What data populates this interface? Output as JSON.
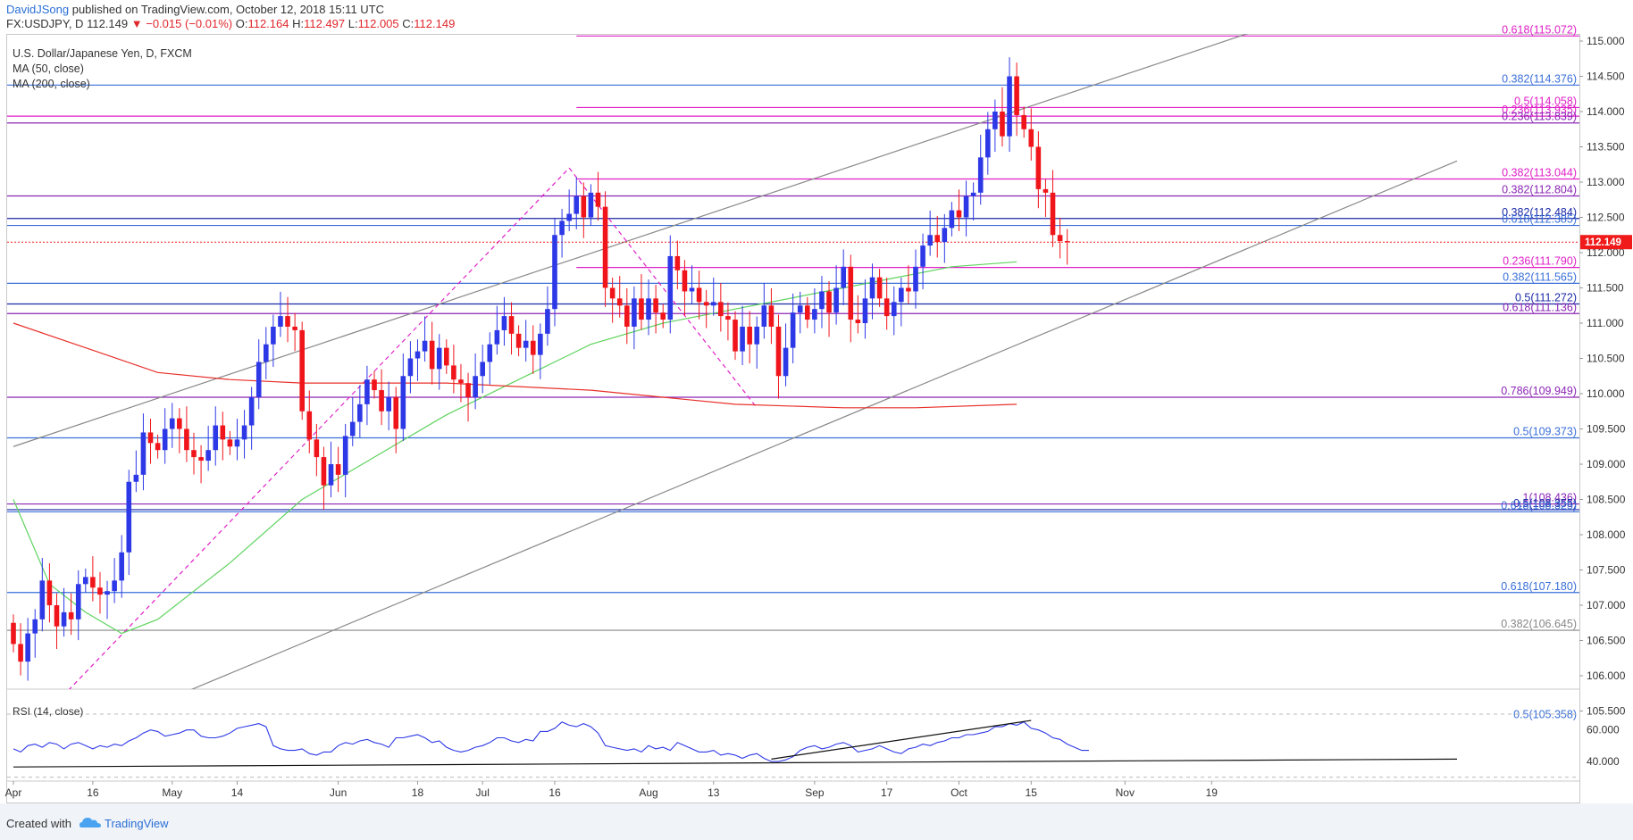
{
  "header": {
    "author": "DavidJSong",
    "published_text": " published on TradingView.com, October 12, 2018 15:11 UTC",
    "symbol": "FX:USDJPY, D",
    "last": "112.149",
    "change": "−0.015 (−0.01%)",
    "ohlc": {
      "o_label": "O:",
      "o": "112.164",
      "h_label": "H:",
      "h": "112.497",
      "l_label": "L:",
      "l": "112.005",
      "c_label": "C:",
      "c": "112.149"
    }
  },
  "legend": {
    "title": "U.S. Dollar/Japanese Yen, D, FXCM",
    "ma50": "MA (50, close)",
    "ma200": "MA (200, close)"
  },
  "rsi_label": "RSI (14, close)",
  "footer": {
    "created_with": "Created with",
    "brand": "TradingView"
  },
  "colors": {
    "up": "#2d38e6",
    "down": "#f0151b",
    "ma50": "#5fd35f",
    "ma200": "#e8302a",
    "fib_magenta": "#e020c8",
    "fib_purple": "#8b25b5",
    "fib_blue": "#3a6fd8",
    "fib_navy": "#1b2aa6",
    "trend": "#888888",
    "price_tag": "#f01a1a",
    "rsi": "#2d38e6"
  },
  "chart_data": {
    "type": "candlestick",
    "title": "U.S. Dollar/Japanese Yen, D, FXCM",
    "y_axis": {
      "range": [
        105.0,
        115.3
      ],
      "ticks": [
        "115.000",
        "114.500",
        "114.000",
        "113.500",
        "113.000",
        "112.500",
        "112.000",
        "111.500",
        "111.000",
        "110.500",
        "110.000",
        "109.500",
        "109.000",
        "108.500",
        "108.000",
        "107.500",
        "107.000",
        "106.500",
        "106.000",
        "105.500"
      ]
    },
    "x_axis": {
      "ticks": [
        {
          "label": "Apr",
          "bar": 0
        },
        {
          "label": "16",
          "bar": 11
        },
        {
          "label": "May",
          "bar": 22
        },
        {
          "label": "14",
          "bar": 31
        },
        {
          "label": "Jun",
          "bar": 45
        },
        {
          "label": "18",
          "bar": 56
        },
        {
          "label": "Jul",
          "bar": 65
        },
        {
          "label": "16",
          "bar": 75
        },
        {
          "label": "Aug",
          "bar": 88
        },
        {
          "label": "13",
          "bar": 97
        },
        {
          "label": "Sep",
          "bar": 111
        },
        {
          "label": "17",
          "bar": 121
        },
        {
          "label": "Oct",
          "bar": 131
        },
        {
          "label": "15",
          "bar": 141
        },
        {
          "label": "Nov",
          "bar": 154
        },
        {
          "label": "19",
          "bar": 166
        }
      ]
    },
    "last_price": "112.149",
    "closes": [
      106.45,
      106.2,
      106.6,
      106.8,
      107.35,
      107.0,
      106.7,
      106.9,
      106.8,
      107.3,
      107.4,
      107.25,
      107.15,
      107.2,
      107.35,
      107.75,
      108.75,
      108.85,
      109.45,
      109.3,
      109.2,
      109.5,
      109.65,
      109.5,
      109.2,
      109.1,
      109.05,
      109.2,
      109.55,
      109.35,
      109.25,
      109.35,
      109.55,
      109.95,
      110.45,
      110.7,
      110.95,
      111.1,
      110.95,
      110.9,
      109.75,
      109.35,
      109.1,
      108.7,
      109.0,
      108.85,
      109.4,
      109.6,
      109.85,
      110.2,
      110.05,
      109.75,
      109.95,
      109.5,
      110.25,
      110.5,
      110.6,
      110.75,
      110.35,
      110.65,
      110.4,
      110.2,
      110.15,
      109.95,
      110.25,
      110.45,
      110.7,
      110.9,
      111.1,
      110.85,
      110.65,
      110.75,
      110.55,
      110.85,
      111.2,
      112.25,
      112.45,
      112.55,
      112.8,
      112.5,
      112.85,
      112.65,
      111.5,
      111.35,
      111.25,
      110.95,
      111.35,
      111.05,
      111.35,
      111.15,
      111.05,
      111.95,
      111.75,
      111.45,
      111.5,
      111.3,
      111.25,
      111.3,
      111.1,
      111.05,
      110.6,
      110.95,
      110.7,
      110.95,
      111.25,
      110.95,
      110.25,
      110.65,
      111.15,
      111.25,
      111.05,
      111.2,
      111.45,
      111.15,
      111.5,
      111.8,
      111.05,
      111.0,
      111.35,
      111.65,
      111.35,
      111.1,
      111.3,
      111.5,
      111.45,
      111.8,
      112.1,
      112.25,
      112.15,
      112.35,
      112.6,
      112.5,
      112.8,
      112.85,
      113.35,
      113.75,
      114.0,
      113.65,
      114.5,
      113.95,
      113.75,
      113.5,
      112.9,
      112.85,
      112.25,
      112.164,
      112.149
    ],
    "ma50": {
      "points": [
        [
          0,
          108.5
        ],
        [
          5,
          107.3
        ],
        [
          10,
          106.9
        ],
        [
          15,
          106.6
        ],
        [
          20,
          106.8
        ],
        [
          30,
          107.6
        ],
        [
          40,
          108.5
        ],
        [
          50,
          109.1
        ],
        [
          60,
          109.7
        ],
        [
          70,
          110.2
        ],
        [
          80,
          110.7
        ],
        [
          90,
          111.0
        ],
        [
          100,
          111.2
        ],
        [
          110,
          111.4
        ],
        [
          120,
          111.6
        ],
        [
          130,
          111.8
        ],
        [
          139,
          111.87
        ]
      ]
    },
    "ma200": {
      "points": [
        [
          0,
          111.0
        ],
        [
          10,
          110.65
        ],
        [
          20,
          110.3
        ],
        [
          30,
          110.2
        ],
        [
          40,
          110.15
        ],
        [
          60,
          110.15
        ],
        [
          80,
          110.05
        ],
        [
          100,
          109.85
        ],
        [
          115,
          109.8
        ],
        [
          125,
          109.8
        ],
        [
          139,
          109.85
        ]
      ]
    },
    "channel_lines": [
      {
        "from": [
          0,
          109.25
        ],
        "to": [
          200,
          116.1
        ]
      },
      {
        "from": [
          0,
          104.75
        ],
        "to": [
          200,
          113.3
        ]
      }
    ],
    "fibonacci_levels": [
      {
        "label": "0.618(115.072)",
        "value": 115.072,
        "color": "fib_magenta",
        "x_from": 78
      },
      {
        "label": "0.382(114.376)",
        "value": 114.376,
        "color": "fib_blue",
        "x_from": 0
      },
      {
        "label": "0.5(114.058)",
        "value": 114.058,
        "color": "fib_magenta",
        "x_from": 78
      },
      {
        "label": "0.236(113.935)",
        "value": 113.935,
        "color": "fib_magenta",
        "x_from": 0
      },
      {
        "label": "0.236(113.839)",
        "value": 113.839,
        "color": "fib_purple",
        "x_from": 0
      },
      {
        "label": "0.382(113.044)",
        "value": 113.044,
        "color": "fib_magenta",
        "x_from": 78
      },
      {
        "label": "0.382(112.804)",
        "value": 112.804,
        "color": "fib_purple",
        "x_from": 0
      },
      {
        "label": "0.382(112.484)",
        "value": 112.484,
        "color": "fib_navy",
        "x_from": 0
      },
      {
        "label": "0.618(112.385)",
        "value": 112.385,
        "color": "fib_blue",
        "x_from": 0
      },
      {
        "label": "0.236(111.790)",
        "value": 111.79,
        "color": "fib_magenta",
        "x_from": 78
      },
      {
        "label": "0.382(111.565)",
        "value": 111.565,
        "color": "fib_blue",
        "x_from": 0
      },
      {
        "label": "0.5(111.272)",
        "value": 111.272,
        "color": "fib_navy",
        "x_from": 0
      },
      {
        "label": "0.618(111.136)",
        "value": 111.136,
        "color": "fib_purple",
        "x_from": 0
      },
      {
        "label": "0.786(109.949)",
        "value": 109.949,
        "color": "fib_purple",
        "x_from": 0
      },
      {
        "label": "0.5(109.373)",
        "value": 109.373,
        "color": "fib_blue",
        "x_from": 0
      },
      {
        "label": "1(108.436)",
        "value": 108.436,
        "color": "fib_purple",
        "x_from": 0
      },
      {
        "label": "0.5(108.355)",
        "value": 108.355,
        "color": "fib_navy",
        "x_from": 0
      },
      {
        "label": "0.618(108.325)",
        "value": 108.325,
        "color": "fib_blue",
        "x_from": 0
      },
      {
        "label": "0.618(107.180)",
        "value": 107.18,
        "color": "fib_blue",
        "x_from": 0
      },
      {
        "label": "0.382(106.645)",
        "value": 106.645,
        "color": "trend",
        "x_from": 0
      },
      {
        "label": "0.5(105.358)",
        "value": 105.358,
        "color": "fib_blue",
        "x_from": 0
      }
    ],
    "dashed_swing_lines": [
      {
        "from": [
          3,
          105.3
        ],
        "to": [
          77,
          113.2
        ]
      },
      {
        "from": [
          77,
          113.2
        ],
        "to": [
          103,
          109.8
        ]
      }
    ],
    "rsi": {
      "range": [
        35,
        72
      ],
      "ticks": [
        "60.000",
        "40.000"
      ],
      "levels": [
        70,
        30
      ],
      "values": [
        48,
        46,
        50,
        51,
        49,
        52,
        51,
        48,
        51,
        52,
        50,
        48,
        50,
        49,
        51,
        50,
        53,
        55,
        58,
        60,
        59,
        56,
        57,
        58,
        60,
        60,
        56,
        55,
        55,
        56,
        58,
        61,
        62,
        63,
        64,
        62,
        50,
        48,
        47,
        47,
        48,
        45,
        44,
        46,
        46,
        50,
        52,
        51,
        53,
        54,
        52,
        51,
        49,
        55,
        55,
        56,
        57,
        55,
        52,
        53,
        49,
        47,
        46,
        47,
        49,
        50,
        52,
        55,
        55,
        53,
        52,
        54,
        53,
        59,
        59,
        61,
        65,
        63,
        62,
        64,
        62,
        58,
        50,
        49,
        48,
        47,
        48,
        46,
        50,
        48,
        49,
        47,
        52,
        50,
        48,
        46,
        46,
        47,
        44,
        45,
        44,
        42,
        44,
        45,
        42,
        40,
        40,
        41,
        43,
        47,
        49,
        50,
        48,
        49,
        51,
        52,
        50,
        46,
        47,
        48,
        50,
        48,
        46,
        45,
        48,
        49,
        51,
        50,
        52,
        53,
        55,
        55,
        57,
        57,
        58,
        59,
        62,
        62,
        64,
        63,
        65,
        61,
        60,
        58,
        55,
        54,
        51,
        49,
        47,
        47
      ],
      "trend_lines": [
        {
          "from": [
            105,
            41.5
          ],
          "to": [
            141,
            66
          ]
        },
        {
          "from": [
            0,
            36.5
          ],
          "to": [
            200,
            41.5
          ]
        }
      ]
    }
  }
}
